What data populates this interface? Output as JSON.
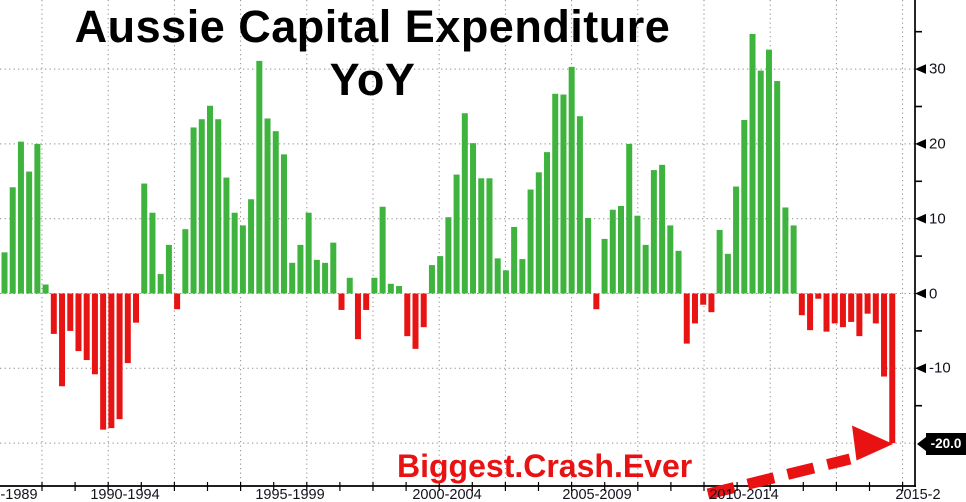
{
  "title": {
    "line1": "Aussie Capital Expenditure",
    "line2": "YoY"
  },
  "annotation": {
    "text": "Biggest.Crash.Ever"
  },
  "last_value_label": "-20.0",
  "colors": {
    "positive_bar": "#3eb43e",
    "negative_bar": "#e81414",
    "annotation_red": "#e81212",
    "grid": "#8f8f8f",
    "axis": "#000000",
    "tick_label": "#12121c",
    "last_value_bg": "#000000",
    "last_value_fg": "#ffffff"
  },
  "chart_data": {
    "type": "bar",
    "title": "Aussie Capital Expenditure YoY",
    "xlabel": "",
    "ylabel": "",
    "frequency": "quarterly",
    "x_tick_labels": [
      "-1989",
      "1990-1994",
      "1995-1999",
      "2000-2004",
      "2005-2009",
      "2010-2014",
      "2015-2"
    ],
    "y_major_ticks": [
      30,
      20,
      10,
      0,
      -10
    ],
    "y_minor_ticks": [
      35,
      25,
      15,
      5,
      -5,
      -15
    ],
    "ylim": [
      -22.5,
      36
    ],
    "grid": "dotted",
    "legend": "none",
    "bar_color_rule": "green when positive, red when negative",
    "last_value": -20.0,
    "values": [
      5.5,
      14.2,
      20.3,
      16.3,
      20.0,
      1.2,
      -5.4,
      -12.4,
      -5.0,
      -7.7,
      -8.9,
      -10.8,
      -18.2,
      -18.0,
      -16.8,
      -9.3,
      -3.9,
      14.7,
      10.8,
      2.6,
      6.5,
      -2.1,
      8.6,
      22.2,
      23.3,
      25.1,
      23.3,
      15.5,
      10.8,
      9.1,
      12.6,
      31.1,
      23.4,
      21.7,
      18.6,
      4.1,
      6.5,
      10.8,
      4.5,
      4.1,
      6.8,
      -2.2,
      2.1,
      -6.1,
      -2.2,
      2.1,
      11.6,
      1.3,
      1.0,
      -5.7,
      -7.4,
      -4.5,
      3.8,
      5.0,
      10.2,
      15.9,
      24.1,
      20.1,
      15.4,
      15.4,
      4.7,
      3.1,
      8.9,
      4.6,
      13.9,
      16.2,
      18.9,
      26.7,
      26.6,
      30.3,
      23.7,
      10.1,
      -2.1,
      7.3,
      11.2,
      11.7,
      20.0,
      10.4,
      6.5,
      16.5,
      17.2,
      9.1,
      5.7,
      -6.7,
      -4.0,
      -1.5,
      -2.5,
      8.5,
      5.3,
      14.3,
      23.2,
      34.7,
      29.8,
      32.6,
      28.4,
      11.5,
      9.1,
      -2.9,
      -4.9,
      -0.7,
      -5.1,
      -4.0,
      -4.5,
      -3.8,
      -5.7,
      -2.7,
      -4.0,
      -11.1,
      -20.0
    ]
  }
}
